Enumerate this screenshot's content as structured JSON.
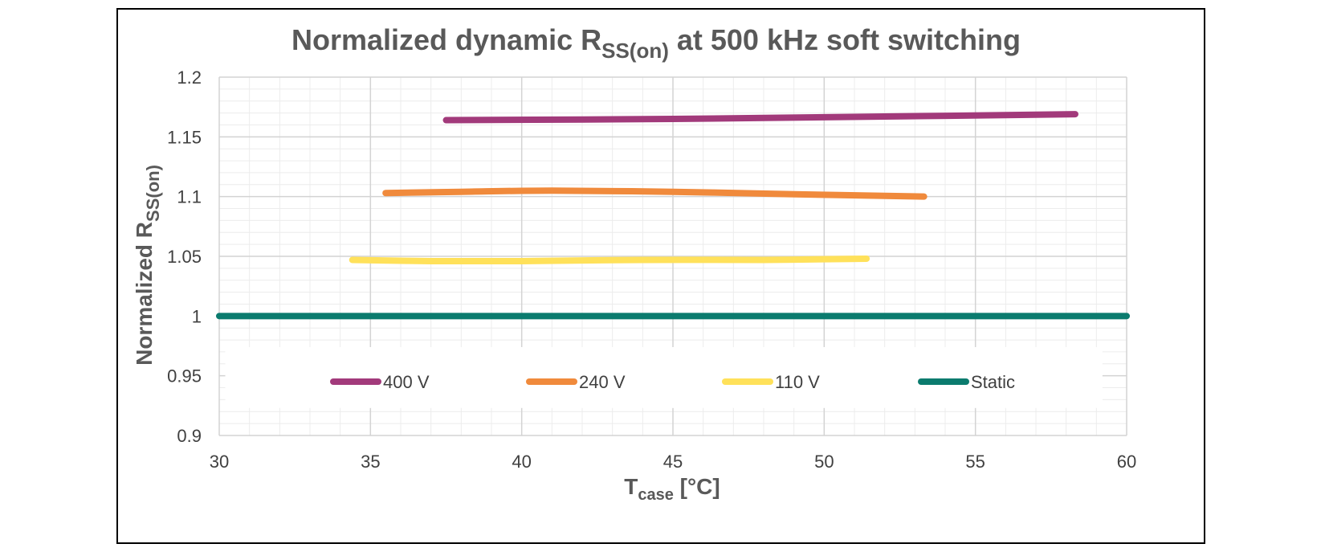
{
  "chart_data": {
    "type": "line",
    "title": {
      "main": "Normalized dynamic R",
      "sub": "SS(on)",
      "tail": " at 500 kHz soft switching"
    },
    "xlabel": {
      "main": "T",
      "sub": "case",
      "tail": " [°C]"
    },
    "ylabel": {
      "main": "Normalized R",
      "sub": "SS(on)"
    },
    "xlim": [
      30,
      60
    ],
    "ylim": [
      0.9,
      1.2
    ],
    "xticks": [
      "30",
      "35",
      "40",
      "45",
      "50",
      "55",
      "60"
    ],
    "yticks": [
      "0.9",
      "0.95",
      "1",
      "1.05",
      "1.1",
      "1.15",
      "1.2"
    ],
    "grid": true,
    "legend_position": "bottom-inside",
    "series": [
      {
        "name": "400 V",
        "color": "#A23A7B",
        "x": [
          37.5,
          45,
          52,
          58.3
        ],
        "y": [
          1.164,
          1.165,
          1.167,
          1.169
        ]
      },
      {
        "name": "240 V",
        "color": "#F08A3C",
        "x": [
          35.5,
          38,
          41,
          45,
          49,
          53.3
        ],
        "y": [
          1.103,
          1.104,
          1.105,
          1.104,
          1.102,
          1.1
        ]
      },
      {
        "name": "110 V",
        "color": "#FFE15A",
        "x": [
          34.4,
          37,
          40,
          44,
          48,
          51.4
        ],
        "y": [
          1.047,
          1.046,
          1.046,
          1.047,
          1.047,
          1.048
        ]
      },
      {
        "name": "Static",
        "color": "#0B7B6E",
        "x": [
          30,
          60
        ],
        "y": [
          1.0,
          1.0
        ]
      }
    ]
  }
}
